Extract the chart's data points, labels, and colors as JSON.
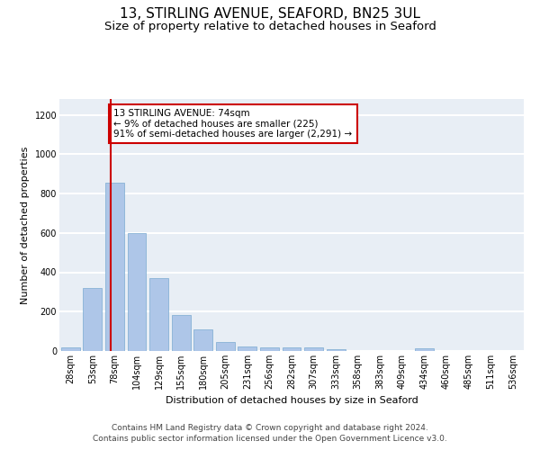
{
  "title_line1": "13, STIRLING AVENUE, SEAFORD, BN25 3UL",
  "title_line2": "Size of property relative to detached houses in Seaford",
  "xlabel": "Distribution of detached houses by size in Seaford",
  "ylabel": "Number of detached properties",
  "categories": [
    "28sqm",
    "53sqm",
    "78sqm",
    "104sqm",
    "129sqm",
    "155sqm",
    "180sqm",
    "205sqm",
    "231sqm",
    "256sqm",
    "282sqm",
    "307sqm",
    "333sqm",
    "358sqm",
    "383sqm",
    "409sqm",
    "434sqm",
    "460sqm",
    "485sqm",
    "511sqm",
    "536sqm"
  ],
  "values": [
    18,
    320,
    855,
    600,
    370,
    185,
    108,
    48,
    22,
    18,
    18,
    20,
    10,
    0,
    0,
    0,
    12,
    0,
    0,
    0,
    0
  ],
  "bar_color": "#aec6e8",
  "bar_edge_color": "#7aaad0",
  "annotation_text": "13 STIRLING AVENUE: 74sqm\n← 9% of detached houses are smaller (225)\n91% of semi-detached houses are larger (2,291) →",
  "vline_color": "#cc0000",
  "vline_x_index": 1.84,
  "annotation_box_color": "#ffffff",
  "annotation_box_edge": "#cc0000",
  "ylim": [
    0,
    1280
  ],
  "yticks": [
    0,
    200,
    400,
    600,
    800,
    1000,
    1200
  ],
  "footer_line1": "Contains HM Land Registry data © Crown copyright and database right 2024.",
  "footer_line2": "Contains public sector information licensed under the Open Government Licence v3.0.",
  "background_color": "#e8eef5",
  "grid_color": "#ffffff",
  "title1_fontsize": 11,
  "title2_fontsize": 9.5,
  "axis_label_fontsize": 8,
  "tick_fontsize": 7,
  "annotation_fontsize": 7.5,
  "footer_fontsize": 6.5
}
